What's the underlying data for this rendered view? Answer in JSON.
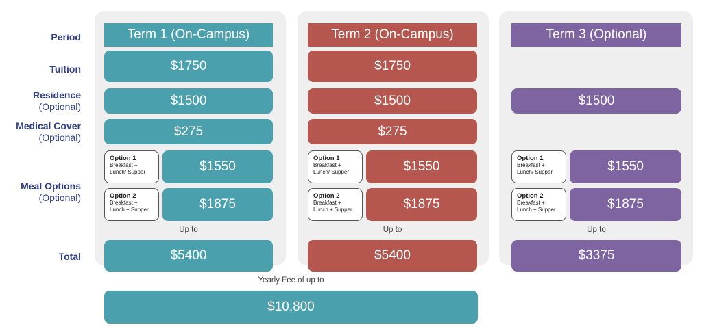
{
  "colors": {
    "term1": "#4aa0ad",
    "term2": "#b5574f",
    "term3": "#7e65a1",
    "label": "#2f3e86",
    "panel": "#efefef"
  },
  "rows": {
    "period": "Period",
    "tuition": "Tuition",
    "residence": "Residence",
    "residence_sub": "(Optional)",
    "medical": "Medical Cover",
    "medical_sub": "(Optional)",
    "meal": "Meal Options",
    "meal_sub": "(Optional)",
    "total": "Total"
  },
  "terms": [
    {
      "title": "Term 1 (On-Campus)",
      "tuition": "$1750",
      "residence": "$1500",
      "medical": "$275",
      "option1": {
        "title": "Option 1",
        "desc1": "Breakfast +",
        "desc2": "Lunch/ Supper",
        "price": "$1550"
      },
      "option2": {
        "title": "Option 2",
        "desc1": "Breakfast +",
        "desc2": "Lunch + Supper",
        "price": "$1875"
      },
      "up_to": "Up to",
      "total": "$5400"
    },
    {
      "title": "Term 2 (On-Campus)",
      "tuition": "$1750",
      "residence": "$1500",
      "medical": "$275",
      "option1": {
        "title": "Option 1",
        "desc1": "Breakfast +",
        "desc2": "Lunch/ Supper",
        "price": "$1550"
      },
      "option2": {
        "title": "Option 2",
        "desc1": "Breakfast +",
        "desc2": "Lunch + Supper",
        "price": "$1875"
      },
      "up_to": "Up to",
      "total": "$5400"
    },
    {
      "title": "Term 3 (Optional)",
      "residence": "$1500",
      "option1": {
        "title": "Option 1",
        "desc1": "Breakfast +",
        "desc2": "Lunch/ Supper",
        "price": "$1550"
      },
      "option2": {
        "title": "Option 2",
        "desc1": "Breakfast +",
        "desc2": "Lunch + Supper",
        "price": "$1875"
      },
      "up_to": "Up to",
      "total": "$3375"
    }
  ],
  "yearly": {
    "label": "Yearly Fee of up to",
    "value": "$10,800"
  }
}
